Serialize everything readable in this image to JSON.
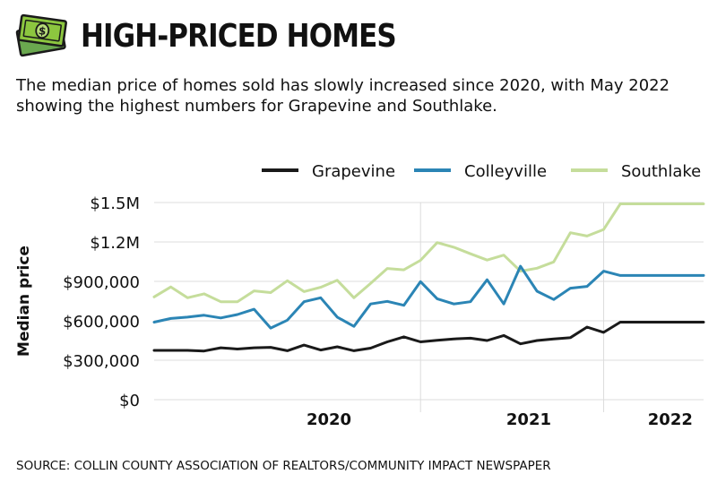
{
  "header": {
    "title": "HIGH-PRICED HOMES",
    "icon": "money-icon",
    "icon_color": "#8cc63f"
  },
  "subtitle": "The median price of homes sold has slowly increased since 2020, with May 2022 showing the highest numbers for Grapevine and Southlake.",
  "source": "SOURCE: COLLIN COUNTY ASSOCIATION OF REALTORS/COMMUNITY IMPACT NEWSPAPER",
  "chart_data": {
    "type": "line",
    "title": "",
    "xlabel": "",
    "ylabel": "Median price",
    "ylim": [
      0,
      1500000
    ],
    "yticks": [
      {
        "value": 0,
        "label": "$0"
      },
      {
        "value": 300000,
        "label": "$300,000"
      },
      {
        "value": 600000,
        "label": "$600,000"
      },
      {
        "value": 900000,
        "label": "$900,000"
      },
      {
        "value": 1200000,
        "label": "$1.2M"
      },
      {
        "value": 1500000,
        "label": "$1.5M"
      }
    ],
    "x": [
      "2019-08",
      "2019-09",
      "2019-10",
      "2019-11",
      "2019-12",
      "2020-01",
      "2020-02",
      "2020-03",
      "2020-04",
      "2020-05",
      "2020-06",
      "2020-07",
      "2020-08",
      "2020-09",
      "2020-10",
      "2020-11",
      "2020-12",
      "2021-01",
      "2021-02",
      "2021-03",
      "2021-04",
      "2021-05",
      "2021-06",
      "2021-07",
      "2021-08",
      "2021-09",
      "2021-10",
      "2021-11",
      "2021-12",
      "2022-01",
      "2022-02",
      "2022-03",
      "2022-04",
      "2022-05"
    ],
    "xlim": [
      "2019-08",
      "2022-05"
    ],
    "year_labels": [
      {
        "label": "2020",
        "start": "2020-01",
        "end": "2020-12"
      },
      {
        "label": "2021",
        "start": "2021-01",
        "end": "2021-12"
      },
      {
        "label": "2022",
        "start": "2022-01",
        "end": "2022-05"
      }
    ],
    "year_dividers": [
      "2020-12",
      "2021-11"
    ],
    "grid": true,
    "legend_position": "top-right",
    "series": [
      {
        "name": "Grapevine",
        "color": "#1a1a1a",
        "values": [
          375000,
          375000,
          375000,
          370000,
          395000,
          385000,
          395000,
          398000,
          372000,
          415000,
          378000,
          402000,
          372000,
          392000,
          440000,
          478000,
          440000,
          452000,
          462000,
          468000,
          450000,
          488000,
          425000,
          450000,
          462000,
          472000,
          552000,
          512000,
          590000,
          590000,
          590000,
          590000,
          590000,
          590000
        ]
      },
      {
        "name": "Colleyville",
        "color": "#2b85b5",
        "values": [
          590000,
          618000,
          628000,
          642000,
          622000,
          648000,
          688000,
          545000,
          605000,
          745000,
          775000,
          628000,
          558000,
          728000,
          748000,
          718000,
          898000,
          768000,
          728000,
          745000,
          912000,
          728000,
          1015000,
          825000,
          762000,
          848000,
          862000,
          978000,
          945000,
          945000,
          945000,
          945000,
          945000,
          945000
        ]
      },
      {
        "name": "Southlake",
        "color": "#c5dd9b",
        "values": [
          782000,
          858000,
          775000,
          805000,
          745000,
          745000,
          828000,
          815000,
          905000,
          822000,
          855000,
          908000,
          775000,
          885000,
          998000,
          988000,
          1060000,
          1195000,
          1160000,
          1110000,
          1062000,
          1100000,
          978000,
          1000000,
          1048000,
          1270000,
          1245000,
          1295000,
          1490000,
          1490000,
          1490000,
          1490000,
          1490000,
          1490000
        ]
      }
    ]
  }
}
